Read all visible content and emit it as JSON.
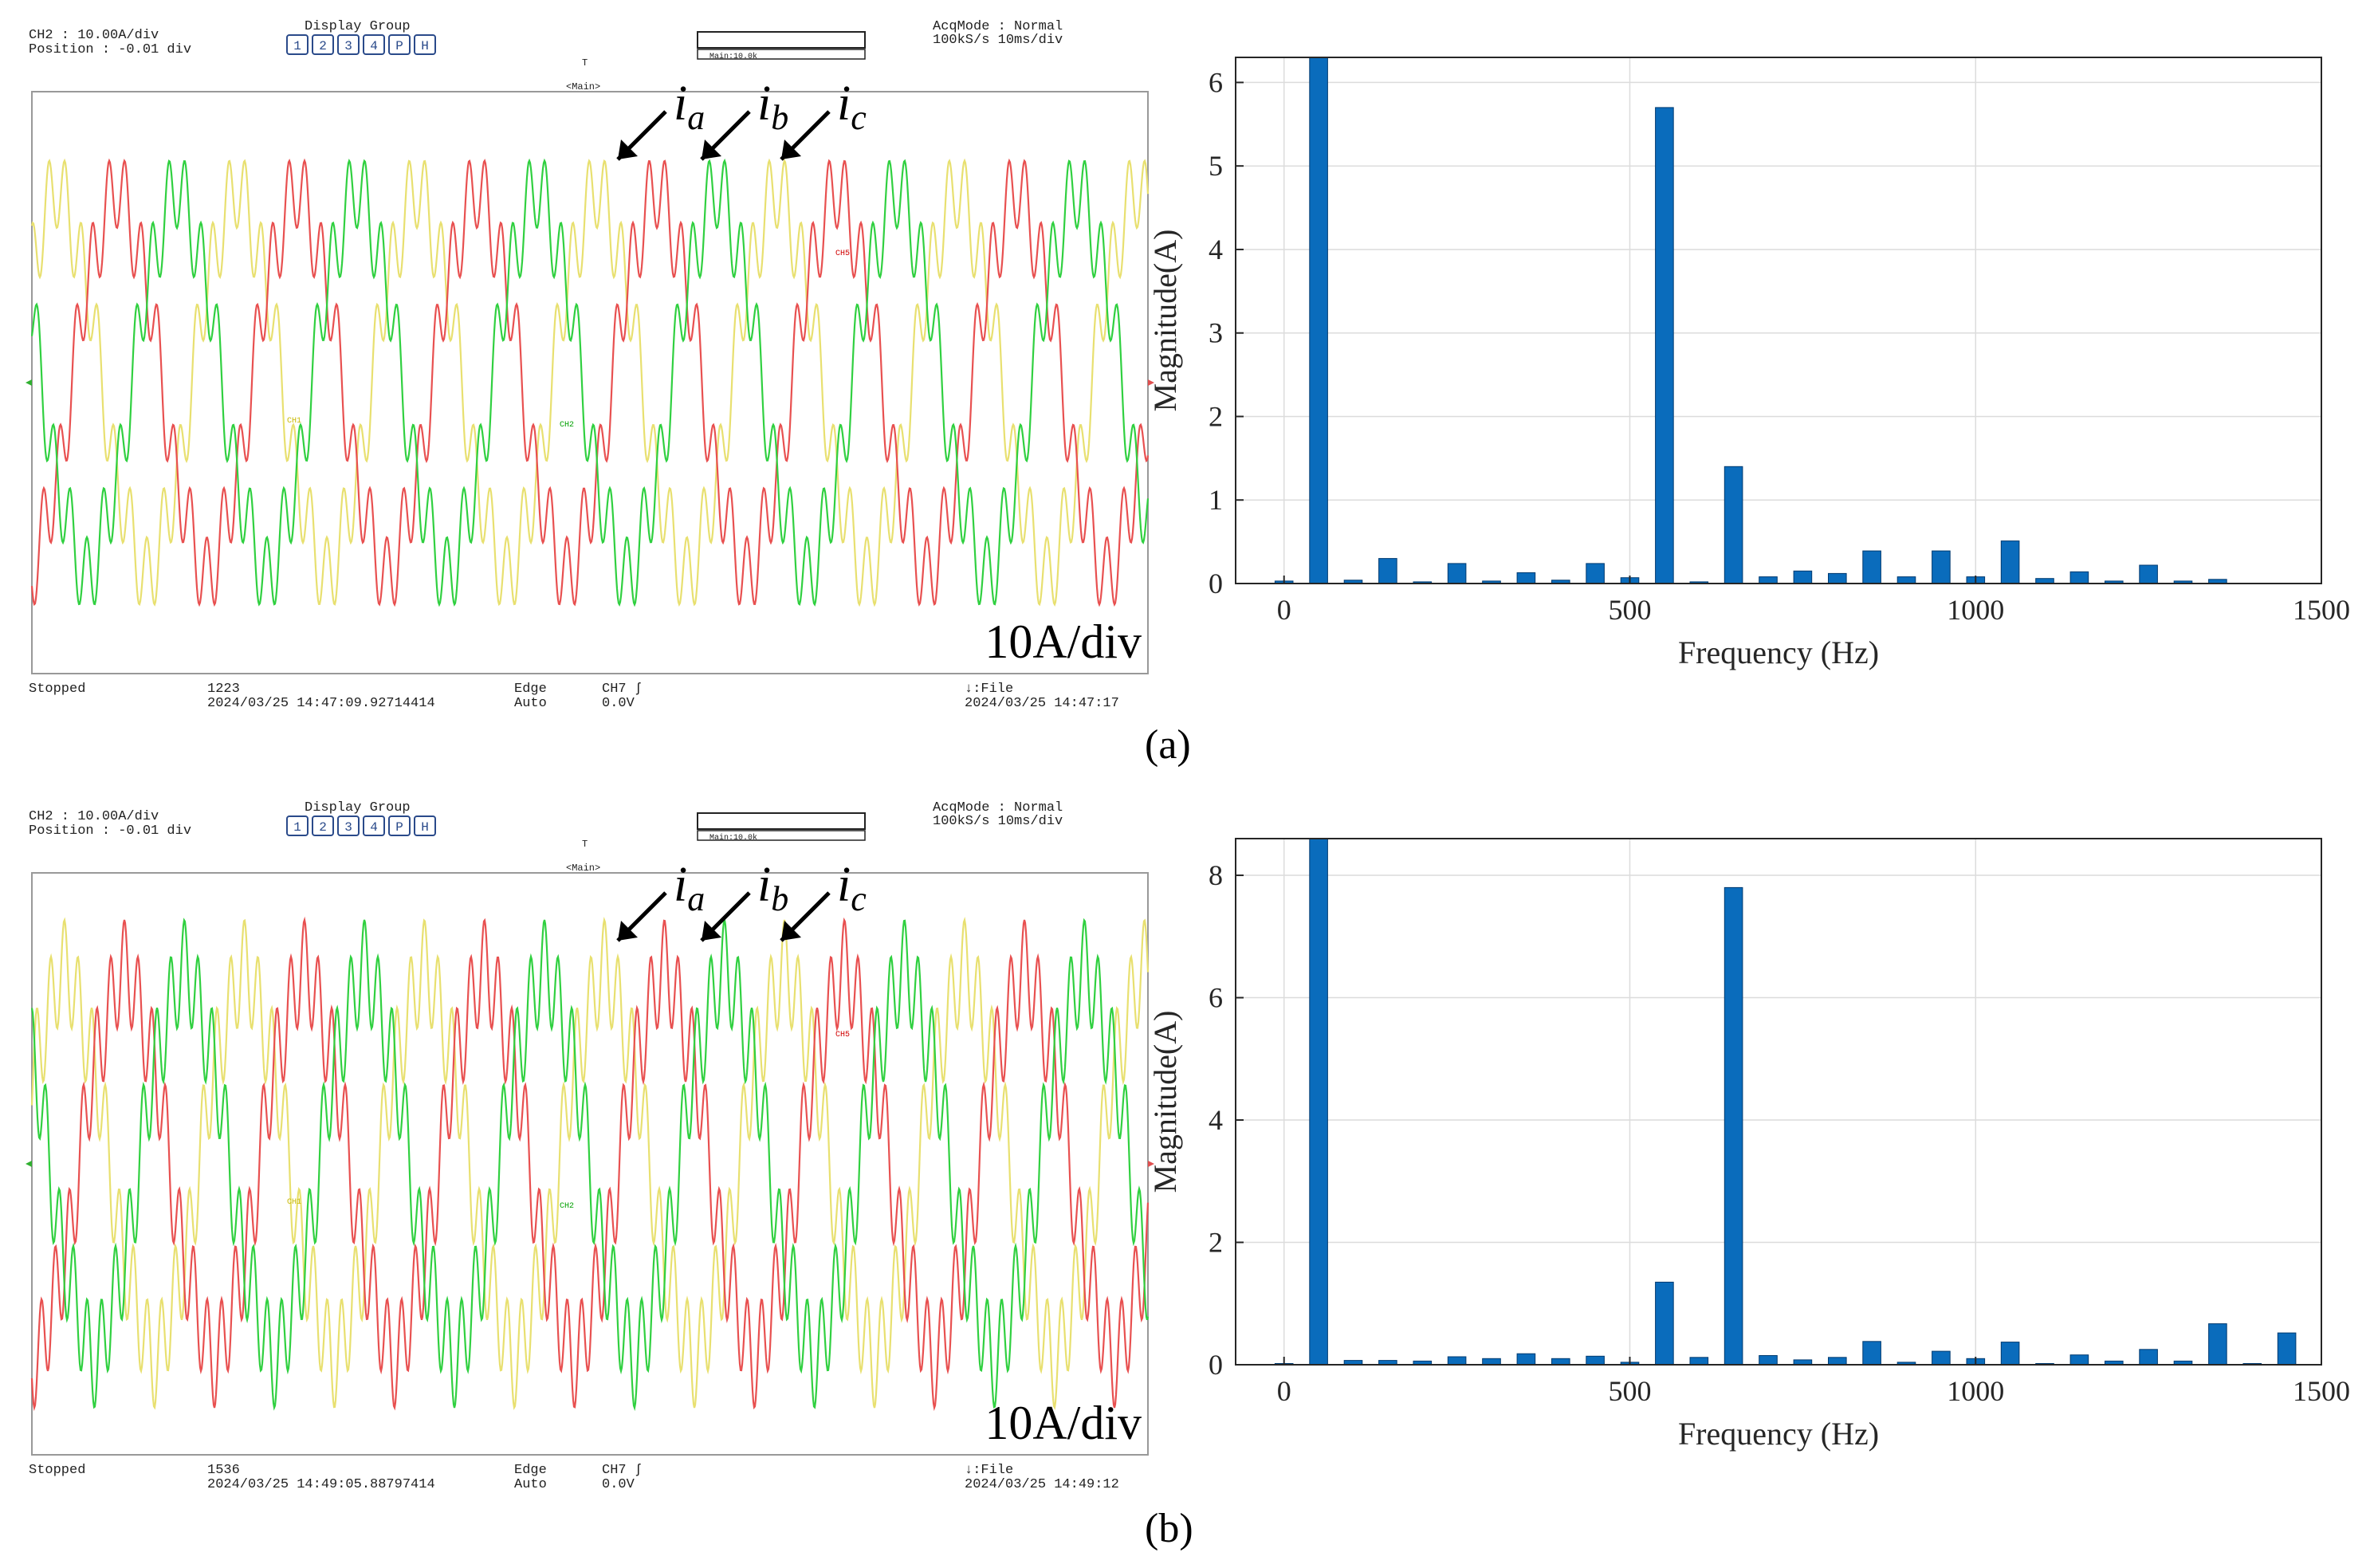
{
  "panels": [
    {
      "id": "a",
      "caption": "(a)",
      "scope": {
        "ch_line": "CH2   : 10.00A/div",
        "pos_line": "Position : -0.01 div",
        "display_group_title": "Display Group",
        "display_group_buttons": [
          "1",
          "2",
          "3",
          "4",
          "P",
          "H"
        ],
        "zoom_label": "Main:10.0k",
        "acq_line1": "AcqMode : Normal",
        "acq_line2": "100kS/s   10ms/div",
        "trigger_mark": "T",
        "main_label": "<Main>",
        "scale_text": "10A/div",
        "status": "Stopped",
        "count": "1223",
        "trigger_time": "2024/03/25 14:47:09.92714414",
        "trig_type": "Edge",
        "trig_mode": "Auto",
        "trig_src": "CH7 ʃ",
        "trig_level": "0.0V",
        "file_label": "↓:File",
        "file_time": "2024/03/25 14:47:17",
        "ch_markers": [
          "CH1",
          "CH2",
          "CH5"
        ],
        "phase_labels": [
          {
            "base": "i",
            "sub": "a"
          },
          {
            "base": "i",
            "sub": "b"
          },
          {
            "base": "i",
            "sub": "c"
          }
        ],
        "waveform": {
          "fundamental_amp": 1.0,
          "harmonic_order": 11,
          "harmonic_amp": 0.22,
          "cycles": 6.2,
          "phase_offset_deg": 40
        }
      },
      "chart_data": {
        "type": "bar",
        "title": "",
        "xlabel": "Frequency (Hz)",
        "ylabel": "Magnitude(A)",
        "xlim": [
          -70,
          1500
        ],
        "ylim": [
          0,
          6.3
        ],
        "xticks": [
          0,
          500,
          1000,
          1500
        ],
        "yticks": [
          0,
          1,
          2,
          3,
          4,
          5,
          6
        ],
        "grid": true,
        "x": [
          0,
          50,
          100,
          150,
          200,
          250,
          300,
          350,
          400,
          450,
          500,
          550,
          600,
          650,
          700,
          750,
          800,
          850,
          900,
          950,
          1000,
          1050,
          1100,
          1150,
          1200,
          1250,
          1300,
          1350
        ],
        "values": [
          0.03,
          6.3,
          0.04,
          0.3,
          0.02,
          0.24,
          0.03,
          0.13,
          0.04,
          0.24,
          0.07,
          5.7,
          0.02,
          1.4,
          0.08,
          0.15,
          0.12,
          0.39,
          0.08,
          0.39,
          0.08,
          0.51,
          0.06,
          0.14,
          0.03,
          0.22,
          0.03,
          0.05
        ]
      }
    },
    {
      "id": "b",
      "caption": "(b)",
      "scope": {
        "ch_line": "CH2   : 10.00A/div",
        "pos_line": "Position : -0.01 div",
        "display_group_title": "Display Group",
        "display_group_buttons": [
          "1",
          "2",
          "3",
          "4",
          "P",
          "H"
        ],
        "zoom_label": "Main:10.0k",
        "acq_line1": "AcqMode : Normal",
        "acq_line2": "100kS/s   10ms/div",
        "trigger_mark": "T",
        "main_label": "<Main>",
        "scale_text": "10A/div",
        "status": "Stopped",
        "count": "1536",
        "trigger_time": "2024/03/25 14:49:05.88797414",
        "trig_type": "Edge",
        "trig_mode": "Auto",
        "trig_src": "CH7 ʃ",
        "trig_level": "0.0V",
        "file_label": "↓:File",
        "file_time": "2024/03/25 14:49:12",
        "ch_markers": [
          "CH1",
          "CH2",
          "CH5"
        ],
        "phase_labels": [
          {
            "base": "i",
            "sub": "a"
          },
          {
            "base": "i",
            "sub": "b"
          },
          {
            "base": "i",
            "sub": "c"
          }
        ],
        "waveform": {
          "fundamental_amp": 1.0,
          "harmonic_order": 13,
          "harmonic_amp": 0.26,
          "cycles": 6.2,
          "phase_offset_deg": 25
        }
      },
      "chart_data": {
        "type": "bar",
        "title": "",
        "xlabel": "Frequency (Hz)",
        "ylabel": "Magnitude(A)",
        "xlim": [
          -70,
          1500
        ],
        "ylim": [
          0,
          8.6
        ],
        "xticks": [
          0,
          500,
          1000,
          1500
        ],
        "yticks": [
          0,
          2,
          4,
          6,
          8
        ],
        "grid": true,
        "x": [
          0,
          50,
          100,
          150,
          200,
          250,
          300,
          350,
          400,
          450,
          500,
          550,
          600,
          650,
          700,
          750,
          800,
          850,
          900,
          950,
          1000,
          1050,
          1100,
          1150,
          1200,
          1250,
          1300,
          1350,
          1400,
          1450
        ],
        "values": [
          0.02,
          8.6,
          0.07,
          0.07,
          0.06,
          0.13,
          0.1,
          0.18,
          0.1,
          0.14,
          0.04,
          1.35,
          0.12,
          7.8,
          0.15,
          0.08,
          0.12,
          0.38,
          0.04,
          0.22,
          0.1,
          0.37,
          0.02,
          0.16,
          0.06,
          0.25,
          0.06,
          0.67,
          0.02,
          0.52
        ]
      }
    }
  ]
}
